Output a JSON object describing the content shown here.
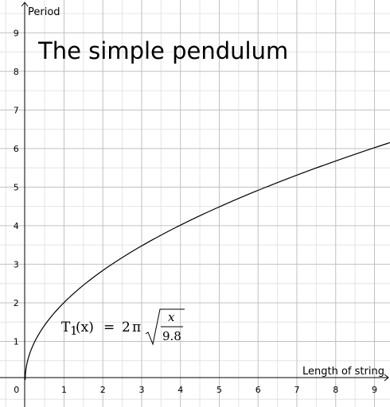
{
  "chart_data": {
    "type": "line",
    "title": "The simple pendulum",
    "xlabel": "Length of string",
    "ylabel": "Period",
    "xlim": [
      -0.65,
      9.4
    ],
    "ylim": [
      -0.7,
      9.85
    ],
    "x_ticks": [
      "0",
      "1",
      "2",
      "3",
      "4",
      "5",
      "6",
      "7",
      "8",
      "9"
    ],
    "y_ticks": [
      "1",
      "2",
      "3",
      "4",
      "5",
      "6",
      "7",
      "8",
      "9"
    ],
    "grid": true,
    "minor_grid_step": 0.5,
    "series": [
      {
        "name": "T1",
        "function": "2*pi*sqrt(x/9.8)",
        "x": [
          0,
          0.25,
          0.5,
          1,
          1.5,
          2,
          2.5,
          3,
          3.5,
          4,
          4.5,
          5,
          5.5,
          6,
          6.5,
          7,
          7.5,
          8,
          8.5,
          9,
          9.4
        ],
        "y": [
          0,
          1.0,
          1.42,
          2.01,
          2.46,
          2.84,
          3.17,
          3.48,
          3.76,
          4.01,
          4.26,
          4.49,
          4.71,
          4.92,
          5.12,
          5.31,
          5.5,
          5.68,
          5.85,
          6.02,
          6.15
        ],
        "color": "#000000"
      }
    ],
    "annotation": {
      "lhs_name": "T",
      "lhs_sub": "1",
      "lhs_arg": "(x)",
      "equals": "=",
      "coef": "2",
      "pi": "π",
      "numerator": "x",
      "denominator": "9.8"
    }
  }
}
